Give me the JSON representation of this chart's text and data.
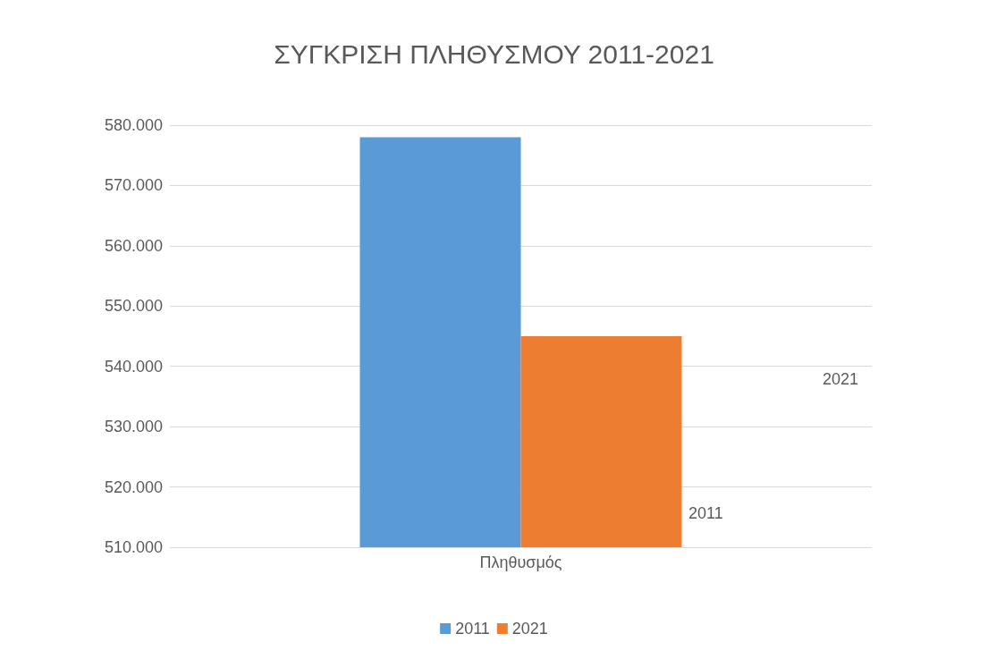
{
  "chart_data": {
    "type": "bar",
    "title": "ΣΥΓΚΡΙΣΗ ΠΛΗΘΥΣΜΟΥ 2011-2021",
    "categories": [
      "Πληθυσμός"
    ],
    "series": [
      {
        "name": "2011",
        "color": "#5b9bd5",
        "values": [
          578000
        ]
      },
      {
        "name": "2021",
        "color": "#ed7d31",
        "values": [
          545000
        ]
      }
    ],
    "ylim": [
      510000,
      580000
    ],
    "yticks": [
      {
        "value": 510000,
        "label": "510.000"
      },
      {
        "value": 520000,
        "label": "520.000"
      },
      {
        "value": 530000,
        "label": "530.000"
      },
      {
        "value": 540000,
        "label": "540.000"
      },
      {
        "value": 550000,
        "label": "550.000"
      },
      {
        "value": 560000,
        "label": "560.000"
      },
      {
        "value": 570000,
        "label": "570.000"
      },
      {
        "value": 580000,
        "label": "580.000"
      }
    ],
    "annotations": [
      "2011",
      "2021"
    ],
    "grid": true,
    "legend": "bottom"
  }
}
